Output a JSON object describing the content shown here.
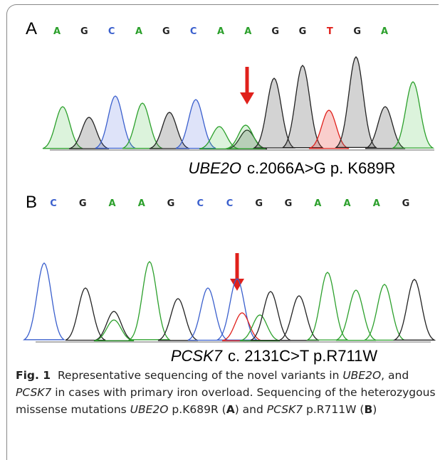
{
  "panels": [
    {
      "label": "A",
      "bases": [
        "A",
        "G",
        "C",
        "A",
        "G",
        "C",
        "A",
        "A",
        "G",
        "G",
        "T",
        "G",
        "A"
      ],
      "gene": "UBE2O",
      "variant": "c.2066A>G p. K689R"
    },
    {
      "label": "B",
      "bases": [
        "C",
        "G",
        "A",
        "A",
        "G",
        "C",
        "C",
        "G",
        "G",
        "A",
        "A",
        "A",
        "G"
      ],
      "gene": "PCSK7",
      "variant": "c. 2131C>T p.R711W"
    }
  ],
  "caption": {
    "label": "Fig. 1",
    "parts": [
      "Representative sequencing of the novel variants in ",
      "UBE2O",
      ", and ",
      "PCSK7",
      " in cases with primary iron overload. Sequencing of the heterozygous missense mutations ",
      "UBE2O",
      " p.K689R (",
      "A",
      ") and ",
      "PCSK7",
      " p.R711W (",
      "B",
      ")"
    ]
  }
}
